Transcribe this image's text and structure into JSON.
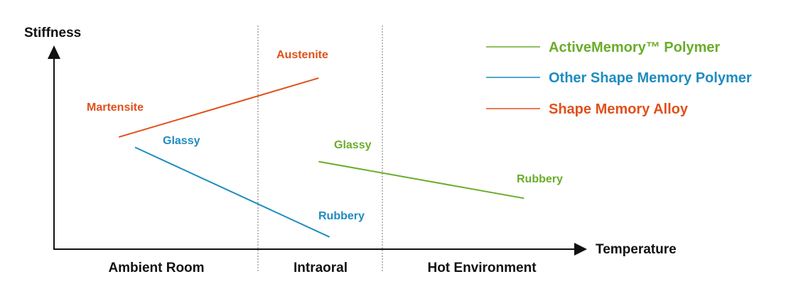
{
  "axes": {
    "y_title": "Stiffness",
    "x_title": "Temperature"
  },
  "regions": [
    {
      "label": "Ambient Room"
    },
    {
      "label": "Intraoral"
    },
    {
      "label": "Hot Environment"
    }
  ],
  "colors": {
    "axis": "#111111",
    "divider": "#777777",
    "active_memory": "#6aad2a",
    "other_smp": "#1f8cc0",
    "sma": "#e0501c"
  },
  "legend": [
    {
      "label": "ActiveMemory™ Polymer",
      "series": "active_memory"
    },
    {
      "label": "Other Shape Memory Polymer",
      "series": "other_smp"
    },
    {
      "label": "Shape Memory Alloy",
      "series": "sma"
    }
  ],
  "series": [
    {
      "key": "sma",
      "start_label": "Martensite",
      "end_label": "Austenite",
      "start_level": 0.55,
      "end_level": 0.84,
      "start_x": 0.12,
      "end_x": 0.49
    },
    {
      "key": "other_smp",
      "start_label": "Glassy",
      "end_label": "Rubbery",
      "start_level": 0.5,
      "end_level": 0.06,
      "start_x": 0.15,
      "end_x": 0.51
    },
    {
      "key": "active_memory",
      "start_label": "Glassy",
      "end_label": "Rubbery",
      "start_level": 0.43,
      "end_level": 0.25,
      "start_x": 0.49,
      "end_x": 0.87
    }
  ]
}
